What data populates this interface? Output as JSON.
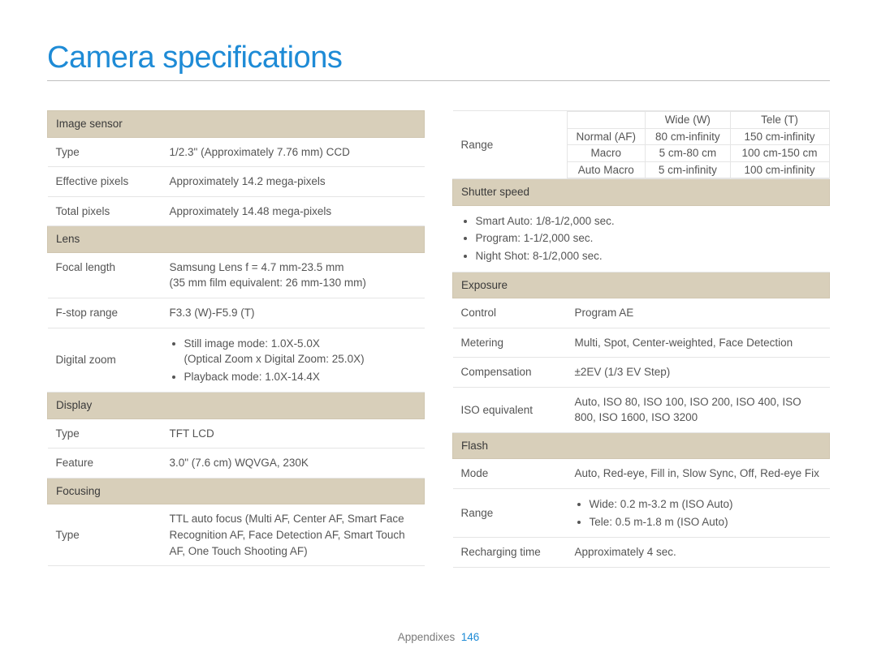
{
  "title": "Camera specifications",
  "footer": {
    "label": "Appendixes",
    "page": "146"
  },
  "left": {
    "imageSensor": {
      "header": "Image sensor",
      "type": {
        "label": "Type",
        "value": "1/2.3\" (Approximately 7.76 mm) CCD"
      },
      "effectivePixels": {
        "label": "Effective pixels",
        "value": "Approximately 14.2 mega-pixels"
      },
      "totalPixels": {
        "label": "Total pixels",
        "value": "Approximately 14.48 mega-pixels"
      }
    },
    "lens": {
      "header": "Lens",
      "focalLength": {
        "label": "Focal length",
        "value": "Samsung Lens f = 4.7 mm-23.5 mm\n(35 mm film equivalent: 26 mm-130 mm)"
      },
      "fstop": {
        "label": "F-stop range",
        "value": "F3.3 (W)-F5.9 (T)"
      },
      "digitalZoom": {
        "label": "Digital zoom",
        "items": [
          "Still image mode: 1.0X-5.0X\n(Optical Zoom x Digital Zoom: 25.0X)",
          "Playback mode: 1.0X-14.4X"
        ]
      }
    },
    "display": {
      "header": "Display",
      "type": {
        "label": "Type",
        "value": "TFT LCD"
      },
      "feature": {
        "label": "Feature",
        "value": "3.0\" (7.6 cm) WQVGA, 230K"
      }
    },
    "focusing": {
      "header": "Focusing",
      "type": {
        "label": "Type",
        "value": "TTL auto focus (Multi AF, Center AF, Smart Face Recognition AF, Face Detection AF, Smart Touch AF, One Touch Shooting AF)"
      }
    }
  },
  "right": {
    "range": {
      "label": "Range",
      "headers": {
        "wide": "Wide (W)",
        "tele": "Tele (T)"
      },
      "rows": [
        {
          "mode": "Normal (AF)",
          "wide": "80 cm-infinity",
          "tele": "150 cm-infinity"
        },
        {
          "mode": "Macro",
          "wide": "5 cm-80 cm",
          "tele": "100 cm-150 cm"
        },
        {
          "mode": "Auto Macro",
          "wide": "5 cm-infinity",
          "tele": "100 cm-infinity"
        }
      ]
    },
    "shutter": {
      "header": "Shutter speed",
      "items": [
        "Smart Auto: 1/8-1/2,000 sec.",
        "Program: 1-1/2,000 sec.",
        "Night Shot: 8-1/2,000 sec."
      ]
    },
    "exposure": {
      "header": "Exposure",
      "control": {
        "label": "Control",
        "value": "Program AE"
      },
      "metering": {
        "label": "Metering",
        "value": "Multi, Spot, Center-weighted, Face Detection"
      },
      "compensation": {
        "label": "Compensation",
        "value": "±2EV (1/3 EV Step)"
      },
      "iso": {
        "label": "ISO equivalent",
        "value": "Auto, ISO 80, ISO 100, ISO 200, ISO 400, ISO 800, ISO 1600, ISO 3200"
      }
    },
    "flash": {
      "header": "Flash",
      "mode": {
        "label": "Mode",
        "value": "Auto, Red-eye, Fill in, Slow Sync, Off, Red-eye Fix"
      },
      "range": {
        "label": "Range",
        "items": [
          "Wide: 0.2 m-3.2 m (ISO Auto)",
          "Tele: 0.5 m-1.8 m (ISO Auto)"
        ]
      },
      "recharge": {
        "label": "Recharging time",
        "value": "Approximately 4 sec."
      }
    }
  }
}
